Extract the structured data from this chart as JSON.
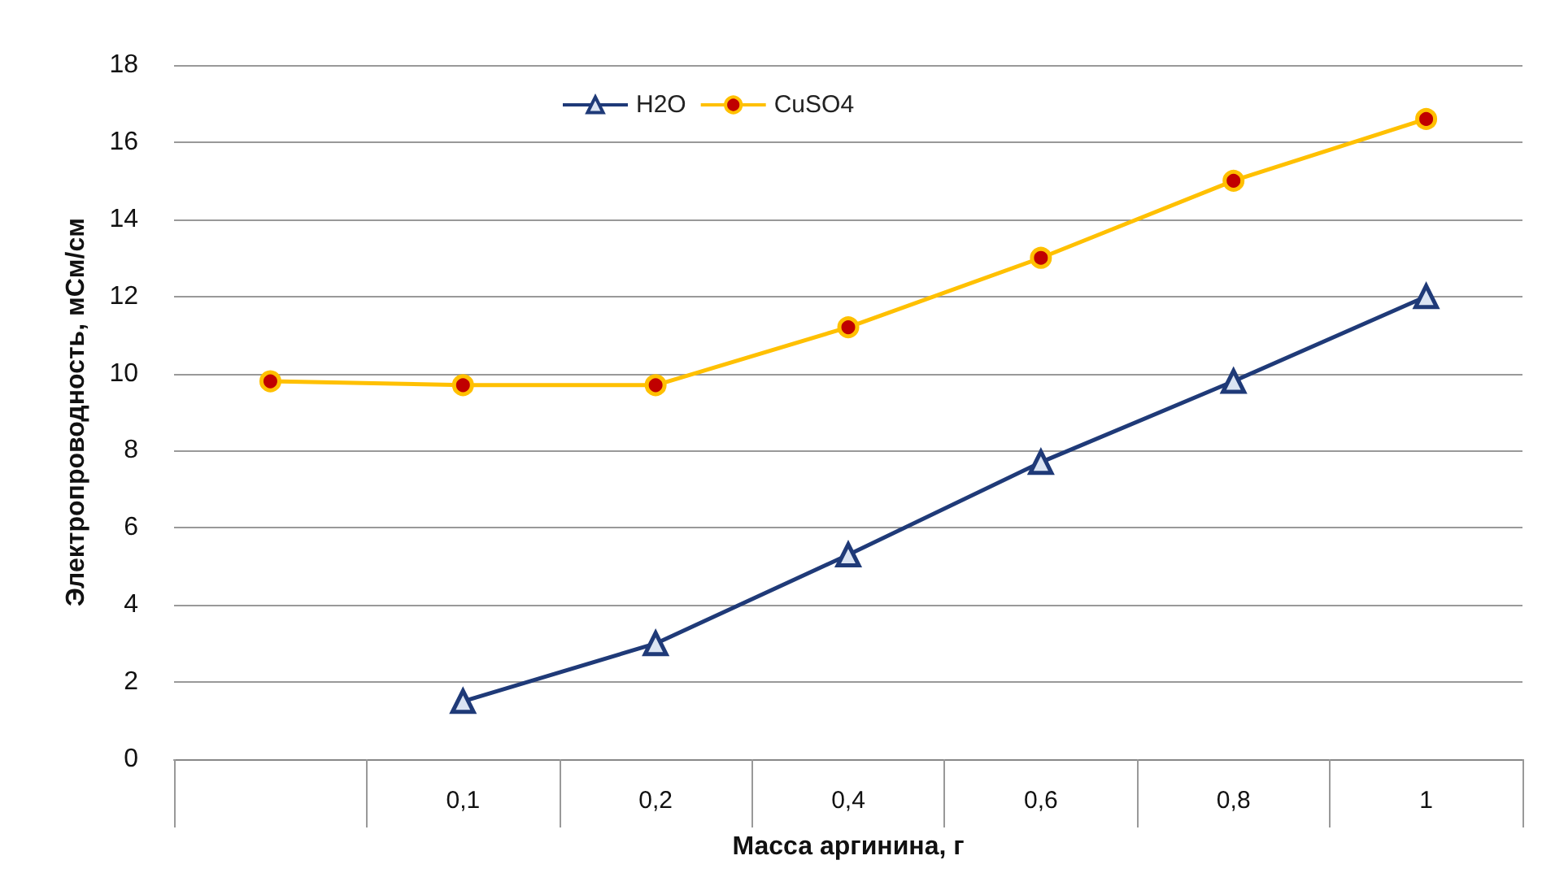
{
  "chart_data": {
    "type": "line",
    "xlabel": "Масса аргинина, г",
    "ylabel": "Электропроводность, мСм/см",
    "categories": [
      null,
      "0,1",
      "0,2",
      "0,4",
      "0,6",
      "0,8",
      "1"
    ],
    "series": [
      {
        "name": "H2O",
        "color": "#1f3a78",
        "marker": "triangle",
        "values": [
          null,
          1.5,
          3.0,
          5.3,
          7.7,
          9.8,
          12.0
        ]
      },
      {
        "name": "CuSO4",
        "color": "#ffc000",
        "marker": "circle",
        "values": [
          9.8,
          9.7,
          9.7,
          11.2,
          13.0,
          15.0,
          16.6
        ]
      }
    ],
    "ylim": [
      0,
      18
    ],
    "yticks": [
      0,
      2,
      4,
      6,
      8,
      10,
      12,
      14,
      16,
      18
    ],
    "grid": "y",
    "legend": "top"
  }
}
